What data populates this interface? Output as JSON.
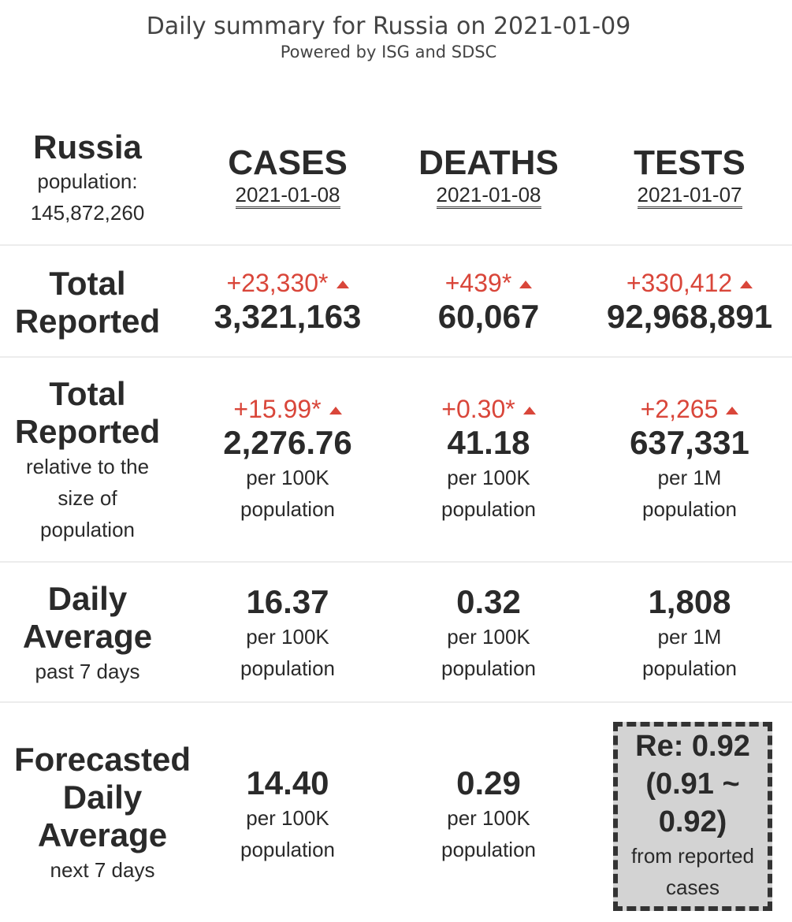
{
  "header": {
    "title": "Daily summary for Russia on 2021-01-09",
    "subtitle": "Powered by ISG and SDSC"
  },
  "country": {
    "name": "Russia",
    "population_label": "population:",
    "population_value": "145,872,260"
  },
  "columns": [
    {
      "label": "CASES",
      "date": "2021-01-08"
    },
    {
      "label": "DEATHS",
      "date": "2021-01-08"
    },
    {
      "label": "TESTS",
      "date": "2021-01-07"
    }
  ],
  "total_reported": {
    "label_1": "Total",
    "label_2": "Reported",
    "cells": [
      {
        "delta": "+23,330*",
        "value": "3,321,163"
      },
      {
        "delta": "+439*",
        "value": "60,067"
      },
      {
        "delta": "+330,412",
        "value": "92,968,891"
      }
    ]
  },
  "relative": {
    "label_1": "Total",
    "label_2": "Reported",
    "sub_1": "relative to the",
    "sub_2": "size of",
    "sub_3": "population",
    "cells": [
      {
        "delta": "+15.99*",
        "value": "2,276.76",
        "unit_1": "per 100K",
        "unit_2": "population"
      },
      {
        "delta": "+0.30*",
        "value": "41.18",
        "unit_1": "per 100K",
        "unit_2": "population"
      },
      {
        "delta": "+2,265",
        "value": "637,331",
        "unit_1": "per 1M",
        "unit_2": "population"
      }
    ]
  },
  "daily_average": {
    "label_1": "Daily",
    "label_2": "Average",
    "sub": "past 7 days",
    "cells": [
      {
        "value": "16.37",
        "unit_1": "per 100K",
        "unit_2": "population"
      },
      {
        "value": "0.32",
        "unit_1": "per 100K",
        "unit_2": "population"
      },
      {
        "value": "1,808",
        "unit_1": "per 1M",
        "unit_2": "population"
      }
    ]
  },
  "forecast": {
    "label_1": "Forecasted",
    "label_2": "Daily",
    "label_3": "Average",
    "sub": "next 7 days",
    "cells": [
      {
        "value": "14.40",
        "unit_1": "per 100K",
        "unit_2": "population"
      },
      {
        "value": "0.29",
        "unit_1": "per 100K",
        "unit_2": "population"
      }
    ],
    "re": {
      "line_1": "Re: 0.92",
      "line_2": "(0.91 ~",
      "line_3": "0.92)",
      "sub_1": "from reported",
      "sub_2": "cases"
    }
  },
  "colors": {
    "delta": "#d9463a",
    "re_box_bg": "#d3d3d3"
  }
}
